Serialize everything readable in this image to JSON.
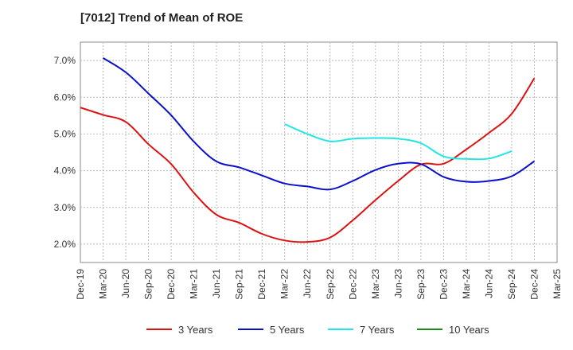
{
  "chart_data": {
    "type": "line",
    "title": "[7012]  Trend of Mean of ROE",
    "xlabel": "",
    "ylabel": "",
    "x_ticks": [
      "Dec-19",
      "Mar-20",
      "Jun-20",
      "Sep-20",
      "Dec-20",
      "Mar-21",
      "Jun-21",
      "Sep-21",
      "Dec-21",
      "Mar-22",
      "Jun-22",
      "Sep-22",
      "Dec-22",
      "Mar-23",
      "Jun-23",
      "Sep-23",
      "Dec-23",
      "Mar-24",
      "Jun-24",
      "Sep-24",
      "Dec-24",
      "Mar-25"
    ],
    "y_ticks": [
      "2.0%",
      "3.0%",
      "4.0%",
      "5.0%",
      "6.0%",
      "7.0%"
    ],
    "ylim": [
      1.5,
      7.5
    ],
    "grid": true,
    "legend_position": "bottom",
    "series": [
      {
        "name": "3 Years",
        "color": "#dd1111",
        "start_index": 0,
        "values": [
          5.72,
          5.52,
          5.33,
          4.72,
          4.18,
          3.4,
          2.8,
          2.58,
          2.28,
          2.1,
          2.06,
          2.18,
          2.65,
          3.2,
          3.72,
          4.17,
          4.19,
          4.58,
          5.03,
          5.55,
          6.52
        ]
      },
      {
        "name": "5 Years",
        "color": "#0a10c8",
        "start_index": 1,
        "values": [
          7.07,
          6.68,
          6.1,
          5.51,
          4.79,
          4.25,
          4.09,
          3.87,
          3.65,
          3.57,
          3.49,
          3.72,
          4.02,
          4.19,
          4.18,
          3.83,
          3.7,
          3.72,
          3.85,
          4.26
        ]
      },
      {
        "name": "7 Years",
        "color": "#22e6e6",
        "start_index": 9,
        "values": [
          5.27,
          5.0,
          4.8,
          4.87,
          4.89,
          4.87,
          4.75,
          4.39,
          4.32,
          4.33,
          4.53
        ]
      },
      {
        "name": "10 Years",
        "color": "#1a8a1a",
        "start_index": 0,
        "values": []
      }
    ]
  }
}
